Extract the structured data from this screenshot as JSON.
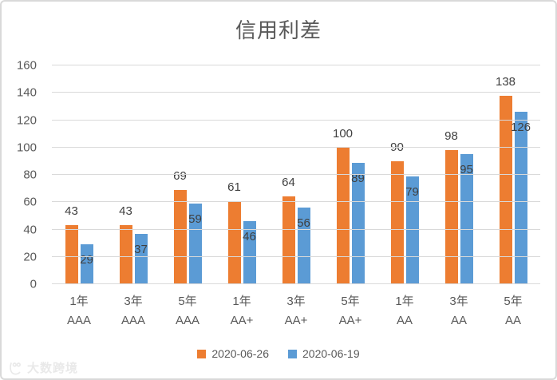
{
  "title": "信用利差",
  "watermark": {
    "text": "大数跨境"
  },
  "colors": {
    "series_1": "#ED7D31",
    "series_2": "#5B9BD5",
    "gridline": "#D9D9D9",
    "axis_text": "#595959",
    "data_label": "#404040"
  },
  "chart_data": {
    "type": "bar",
    "title": "信用利差",
    "categories": [
      {
        "term": "1年",
        "rating": "AAA"
      },
      {
        "term": "3年",
        "rating": "AAA"
      },
      {
        "term": "5年",
        "rating": "AAA"
      },
      {
        "term": "1年",
        "rating": "AA+"
      },
      {
        "term": "3年",
        "rating": "AA+"
      },
      {
        "term": "5年",
        "rating": "AA+"
      },
      {
        "term": "1年",
        "rating": "AA"
      },
      {
        "term": "3年",
        "rating": "AA"
      },
      {
        "term": "5年",
        "rating": "AA"
      }
    ],
    "series": [
      {
        "name": "2020-06-26",
        "color": "#ED7D31",
        "label_position": "outside-end",
        "values": [
          43,
          43,
          69,
          61,
          64,
          100,
          90,
          98,
          138
        ]
      },
      {
        "name": "2020-06-19",
        "color": "#5B9BD5",
        "label_position": "inside-end",
        "values": [
          29,
          37,
          59,
          46,
          56,
          89,
          79,
          95,
          126
        ]
      }
    ],
    "xlabel": "",
    "ylabel": "",
    "ylim": [
      0,
      160
    ],
    "yticks": [
      0,
      20,
      40,
      60,
      80,
      100,
      120,
      140,
      160
    ],
    "grid": true,
    "legend_position": "bottom"
  }
}
